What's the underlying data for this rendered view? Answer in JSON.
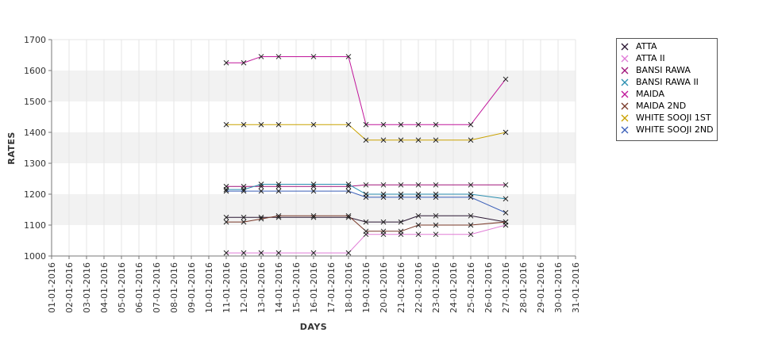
{
  "chart_data": {
    "type": "line",
    "xlabel": "DAYS",
    "ylabel": "RATES",
    "ylim": [
      1000,
      1700
    ],
    "yticks": [
      1000,
      1100,
      1200,
      1300,
      1400,
      1500,
      1600,
      1700
    ],
    "grid": "alternating horizontal bands with vertical gridlines",
    "legend_position": "right",
    "categories": [
      "01-01-2016",
      "02-01-2016",
      "03-01-2016",
      "04-01-2016",
      "05-01-2016",
      "06-01-2016",
      "07-01-2016",
      "08-01-2016",
      "09-01-2016",
      "10-01-2016",
      "11-01-2016",
      "12-01-2016",
      "13-01-2016",
      "14-01-2016",
      "15-01-2016",
      "16-01-2016",
      "17-01-2016",
      "18-01-2016",
      "19-01-2016",
      "20-01-2016",
      "21-01-2016",
      "22-01-2016",
      "23-01-2016",
      "24-01-2016",
      "25-01-2016",
      "26-01-2016",
      "27-01-2016",
      "28-01-2016",
      "29-01-2016",
      "30-01-2016",
      "31-01-2016"
    ],
    "series": [
      {
        "name": "ATTA",
        "color": "#2b1733",
        "points": [
          [
            "11-01-2016",
            1125
          ],
          [
            "12-01-2016",
            1125
          ],
          [
            "13-01-2016",
            1125
          ],
          [
            "14-01-2016",
            1125
          ],
          [
            "16-01-2016",
            1125
          ],
          [
            "18-01-2016",
            1125
          ],
          [
            "19-01-2016",
            1110
          ],
          [
            "20-01-2016",
            1110
          ],
          [
            "21-01-2016",
            1110
          ],
          [
            "22-01-2016",
            1130
          ],
          [
            "23-01-2016",
            1130
          ],
          [
            "25-01-2016",
            1130
          ],
          [
            "27-01-2016",
            1110
          ]
        ]
      },
      {
        "name": "ATTA II",
        "color": "#e07bd6",
        "points": [
          [
            "11-01-2016",
            1010
          ],
          [
            "12-01-2016",
            1010
          ],
          [
            "13-01-2016",
            1010
          ],
          [
            "14-01-2016",
            1010
          ],
          [
            "16-01-2016",
            1010
          ],
          [
            "18-01-2016",
            1010
          ],
          [
            "19-01-2016",
            1070
          ],
          [
            "20-01-2016",
            1070
          ],
          [
            "21-01-2016",
            1070
          ],
          [
            "22-01-2016",
            1070
          ],
          [
            "23-01-2016",
            1070
          ],
          [
            "25-01-2016",
            1070
          ],
          [
            "27-01-2016",
            1100
          ]
        ]
      },
      {
        "name": "BANSI RAWA",
        "color": "#a0157a",
        "points": [
          [
            "11-01-2016",
            1225
          ],
          [
            "12-01-2016",
            1225
          ],
          [
            "13-01-2016",
            1225
          ],
          [
            "14-01-2016",
            1225
          ],
          [
            "16-01-2016",
            1225
          ],
          [
            "18-01-2016",
            1225
          ],
          [
            "19-01-2016",
            1230
          ],
          [
            "20-01-2016",
            1230
          ],
          [
            "21-01-2016",
            1230
          ],
          [
            "22-01-2016",
            1230
          ],
          [
            "23-01-2016",
            1230
          ],
          [
            "25-01-2016",
            1230
          ],
          [
            "27-01-2016",
            1230
          ]
        ]
      },
      {
        "name": "BANSI RAWA II",
        "color": "#2a8fb0",
        "points": [
          [
            "11-01-2016",
            1215
          ],
          [
            "12-01-2016",
            1215
          ],
          [
            "13-01-2016",
            1232
          ],
          [
            "14-01-2016",
            1232
          ],
          [
            "16-01-2016",
            1232
          ],
          [
            "18-01-2016",
            1232
          ],
          [
            "19-01-2016",
            1200
          ],
          [
            "20-01-2016",
            1200
          ],
          [
            "21-01-2016",
            1200
          ],
          [
            "22-01-2016",
            1200
          ],
          [
            "23-01-2016",
            1200
          ],
          [
            "25-01-2016",
            1200
          ],
          [
            "27-01-2016",
            1185
          ]
        ]
      },
      {
        "name": "MAIDA",
        "color": "#c0169a",
        "points": [
          [
            "11-01-2016",
            1625
          ],
          [
            "12-01-2016",
            1625
          ],
          [
            "13-01-2016",
            1645
          ],
          [
            "14-01-2016",
            1645
          ],
          [
            "16-01-2016",
            1645
          ],
          [
            "18-01-2016",
            1645
          ],
          [
            "19-01-2016",
            1425
          ],
          [
            "20-01-2016",
            1425
          ],
          [
            "21-01-2016",
            1425
          ],
          [
            "22-01-2016",
            1425
          ],
          [
            "23-01-2016",
            1425
          ],
          [
            "25-01-2016",
            1425
          ],
          [
            "27-01-2016",
            1572
          ]
        ]
      },
      {
        "name": "MAIDA 2ND",
        "color": "#7a3a2a",
        "points": [
          [
            "11-01-2016",
            1110
          ],
          [
            "12-01-2016",
            1110
          ],
          [
            "13-01-2016",
            1120
          ],
          [
            "14-01-2016",
            1130
          ],
          [
            "16-01-2016",
            1130
          ],
          [
            "18-01-2016",
            1130
          ],
          [
            "19-01-2016",
            1080
          ],
          [
            "20-01-2016",
            1080
          ],
          [
            "21-01-2016",
            1080
          ],
          [
            "22-01-2016",
            1100
          ],
          [
            "23-01-2016",
            1100
          ],
          [
            "25-01-2016",
            1100
          ],
          [
            "27-01-2016",
            1110
          ]
        ]
      },
      {
        "name": "WHITE SOOJI 1ST",
        "color": "#c9a200",
        "points": [
          [
            "11-01-2016",
            1425
          ],
          [
            "12-01-2016",
            1425
          ],
          [
            "13-01-2016",
            1425
          ],
          [
            "14-01-2016",
            1425
          ],
          [
            "16-01-2016",
            1425
          ],
          [
            "18-01-2016",
            1425
          ],
          [
            "19-01-2016",
            1375
          ],
          [
            "20-01-2016",
            1375
          ],
          [
            "21-01-2016",
            1375
          ],
          [
            "22-01-2016",
            1375
          ],
          [
            "23-01-2016",
            1375
          ],
          [
            "25-01-2016",
            1375
          ],
          [
            "27-01-2016",
            1400
          ]
        ]
      },
      {
        "name": "WHITE SOOJI 2ND",
        "color": "#3a5fb8",
        "points": [
          [
            "11-01-2016",
            1210
          ],
          [
            "12-01-2016",
            1210
          ],
          [
            "13-01-2016",
            1210
          ],
          [
            "14-01-2016",
            1210
          ],
          [
            "16-01-2016",
            1210
          ],
          [
            "18-01-2016",
            1210
          ],
          [
            "19-01-2016",
            1190
          ],
          [
            "20-01-2016",
            1190
          ],
          [
            "21-01-2016",
            1190
          ],
          [
            "22-01-2016",
            1190
          ],
          [
            "23-01-2016",
            1190
          ],
          [
            "25-01-2016",
            1190
          ],
          [
            "27-01-2016",
            1140
          ]
        ]
      }
    ]
  }
}
